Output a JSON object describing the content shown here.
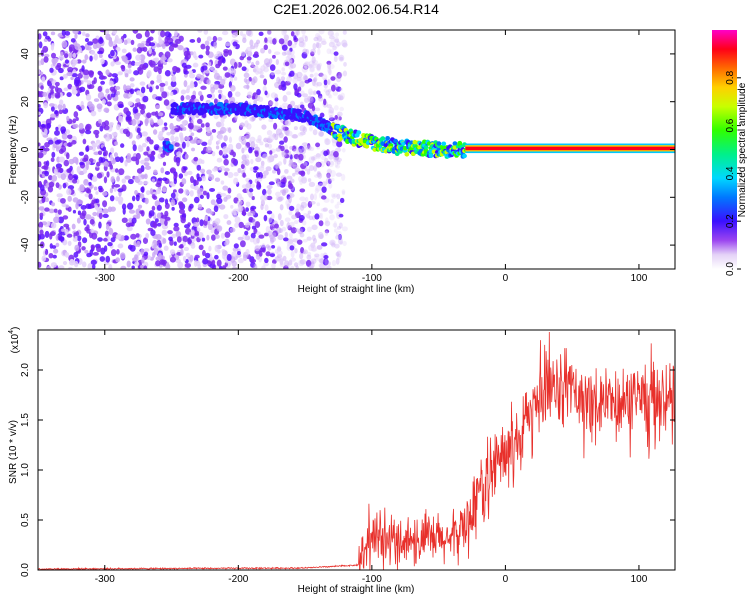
{
  "title": "C2E1.2026.002.06.54.R14",
  "chart_data": [
    {
      "type": "heatmap",
      "name": "spectrogram",
      "xlabel": "Height of straight line (km)",
      "ylabel": "Frequency (Hz)",
      "xlim": [
        -350,
        127
      ],
      "ylim": [
        -50,
        50
      ],
      "xticks": [
        -300,
        -200,
        -100,
        0,
        100
      ],
      "yticks": [
        -40,
        -20,
        0,
        20,
        40
      ],
      "colorbar": {
        "label": "Normalized spectral amplitude",
        "range": [
          0,
          1
        ],
        "ticks": [
          0.0,
          0.2,
          0.4,
          0.6,
          0.8
        ],
        "tick_labels": [
          "0.0",
          "0.2",
          "0.4",
          "0.6",
          "0.8"
        ]
      },
      "ridge": {
        "description_points": [
          {
            "x": -250,
            "y": 17
          },
          {
            "x": -200,
            "y": 17
          },
          {
            "x": -150,
            "y": 14
          },
          {
            "x": -120,
            "y": 6
          },
          {
            "x": -100,
            "y": 3
          },
          {
            "x": -80,
            "y": 1
          },
          {
            "x": -50,
            "y": 0
          },
          {
            "x": -30,
            "y": 0
          },
          {
            "x": 0,
            "y": 1
          },
          {
            "x": 50,
            "y": 0
          },
          {
            "x": 127,
            "y": 1
          }
        ],
        "peak_amplitude_start_km": -30
      },
      "noise_region_km": [
        -350,
        -130
      ]
    },
    {
      "type": "line",
      "name": "snr",
      "xlabel": "Height of straight line (km)",
      "ylabel": "SNR (10 * v/v)",
      "y_multiplier_label": "(x10",
      "y_multiplier_exp": "4",
      "xlim": [
        -350,
        127
      ],
      "ylim": [
        0,
        2.4
      ],
      "xticks": [
        -300,
        -200,
        -100,
        0,
        100
      ],
      "yticks": [
        0.0,
        0.5,
        1.0,
        1.5,
        2.0
      ],
      "ytick_labels": [
        "0.0",
        "0.5",
        "1.0",
        "1.5",
        "2.0"
      ],
      "color": "#e8302b",
      "envelope": [
        {
          "x": -350,
          "y": 0.01
        },
        {
          "x": -150,
          "y": 0.02
        },
        {
          "x": -110,
          "y": 0.05
        },
        {
          "x": -100,
          "y": 0.25
        },
        {
          "x": -80,
          "y": 0.3
        },
        {
          "x": -60,
          "y": 0.3
        },
        {
          "x": -40,
          "y": 0.3
        },
        {
          "x": -30,
          "y": 0.45
        },
        {
          "x": -20,
          "y": 0.75
        },
        {
          "x": -10,
          "y": 1.0
        },
        {
          "x": 0,
          "y": 1.15
        },
        {
          "x": 10,
          "y": 1.4
        },
        {
          "x": 20,
          "y": 1.55
        },
        {
          "x": 30,
          "y": 1.75
        },
        {
          "x": 45,
          "y": 1.85
        },
        {
          "x": 60,
          "y": 1.65
        },
        {
          "x": 80,
          "y": 1.75
        },
        {
          "x": 100,
          "y": 1.65
        },
        {
          "x": 127,
          "y": 1.7
        }
      ],
      "max_value": 2.38
    }
  ]
}
